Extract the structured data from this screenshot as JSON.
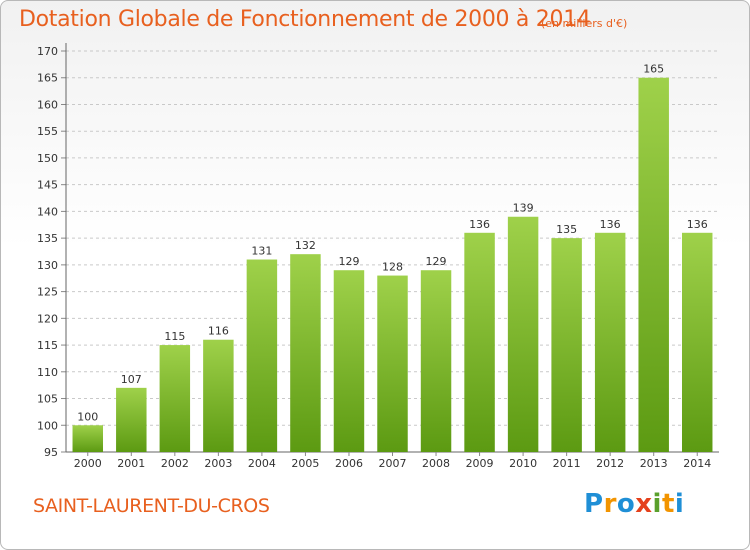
{
  "header": {
    "title": "Dotation Globale de Fonctionnement de 2000 à 2014",
    "unit": "(en milliers d'€)"
  },
  "footer": {
    "commune": "SAINT-LAURENT-DU-CROS",
    "logo_text": "Proxiti"
  },
  "colors": {
    "accent": "#e8601f",
    "bar_top": "#9fd14a",
    "bar_bottom": "#5c9a12",
    "logo": [
      "#1f8fd6",
      "#f29400",
      "#1f8fd6",
      "#e5401b",
      "#5aa02c",
      "#f29400",
      "#1f8fd6"
    ]
  },
  "chart_data": {
    "type": "bar",
    "categories": [
      "2000",
      "2001",
      "2002",
      "2003",
      "2004",
      "2005",
      "2006",
      "2007",
      "2008",
      "2009",
      "2010",
      "2011",
      "2012",
      "2013",
      "2014"
    ],
    "values": [
      100,
      107,
      115,
      116,
      131,
      132,
      129,
      128,
      129,
      136,
      139,
      135,
      136,
      165,
      136
    ],
    "title": "Dotation Globale de Fonctionnement de 2000 à 2014",
    "ylim": [
      95,
      170
    ],
    "yticks": [
      95,
      100,
      105,
      110,
      115,
      120,
      125,
      130,
      135,
      140,
      145,
      150,
      155,
      160,
      165,
      170
    ],
    "grid": true,
    "data_labels": true
  }
}
